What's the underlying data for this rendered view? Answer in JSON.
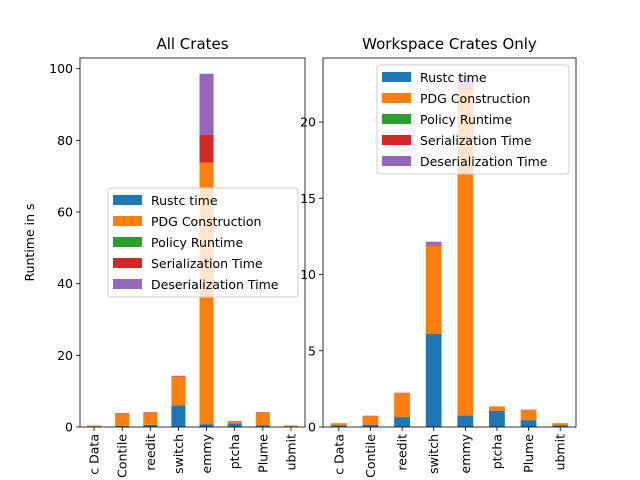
{
  "chart_data": [
    {
      "type": "bar",
      "stacked": true,
      "title": "All Crates",
      "ylabel": "Runtime in s",
      "xlabel": "",
      "ylim": [
        0,
        103
      ],
      "yticks": [
        0,
        20,
        40,
        60,
        80,
        100
      ],
      "categories": [
        "c Data",
        "Contile",
        "reedit",
        "switch",
        "emmy",
        "ptcha",
        "Plume",
        "ubmit"
      ],
      "legend_position": "center-right",
      "series": [
        {
          "name": "Rustc time",
          "color": "#1f77b4",
          "values": [
            0.1,
            0.3,
            0.6,
            6.0,
            0.8,
            1.0,
            0.5,
            0.1
          ]
        },
        {
          "name": "PDG Construction",
          "color": "#ff7f0e",
          "values": [
            0.3,
            3.4,
            3.4,
            8.0,
            73.0,
            0.5,
            3.5,
            0.3
          ]
        },
        {
          "name": "Policy Runtime",
          "color": "#2ca02c",
          "values": [
            0,
            0,
            0,
            0,
            0,
            0,
            0,
            0
          ]
        },
        {
          "name": "Serialization Time",
          "color": "#d62728",
          "values": [
            0,
            0.1,
            0.1,
            0.2,
            7.8,
            0.1,
            0.1,
            0
          ]
        },
        {
          "name": "Deserialization Time",
          "color": "#9467bd",
          "values": [
            0,
            0.1,
            0.1,
            0.1,
            17.0,
            0.1,
            0.1,
            0
          ]
        }
      ]
    },
    {
      "type": "bar",
      "stacked": true,
      "title": "Workspace Crates Only",
      "ylabel": "",
      "xlabel": "",
      "ylim": [
        0,
        24.2
      ],
      "yticks": [
        0,
        5,
        10,
        15,
        20
      ],
      "categories": [
        "c Data",
        "Contile",
        "reedit",
        "switch",
        "emmy",
        "ptcha",
        "Plume",
        "ubmit"
      ],
      "legend_position": "upper-right",
      "series": [
        {
          "name": "Rustc time",
          "color": "#1f77b4",
          "values": [
            0.1,
            0.15,
            0.65,
            6.1,
            0.75,
            1.05,
            0.45,
            0.1
          ]
        },
        {
          "name": "PDG Construction",
          "color": "#ff7f0e",
          "values": [
            0.15,
            0.55,
            1.55,
            5.8,
            21.4,
            0.3,
            0.65,
            0.15
          ]
        },
        {
          "name": "Policy Runtime",
          "color": "#2ca02c",
          "values": [
            0,
            0,
            0,
            0,
            0,
            0,
            0,
            0
          ]
        },
        {
          "name": "Serialization Time",
          "color": "#d62728",
          "values": [
            0,
            0.02,
            0.02,
            0.05,
            0.1,
            0,
            0.02,
            0
          ]
        },
        {
          "name": "Deserialization Time",
          "color": "#9467bd",
          "values": [
            0,
            0.02,
            0.03,
            0.2,
            0.8,
            0,
            0.02,
            0
          ]
        }
      ]
    }
  ]
}
